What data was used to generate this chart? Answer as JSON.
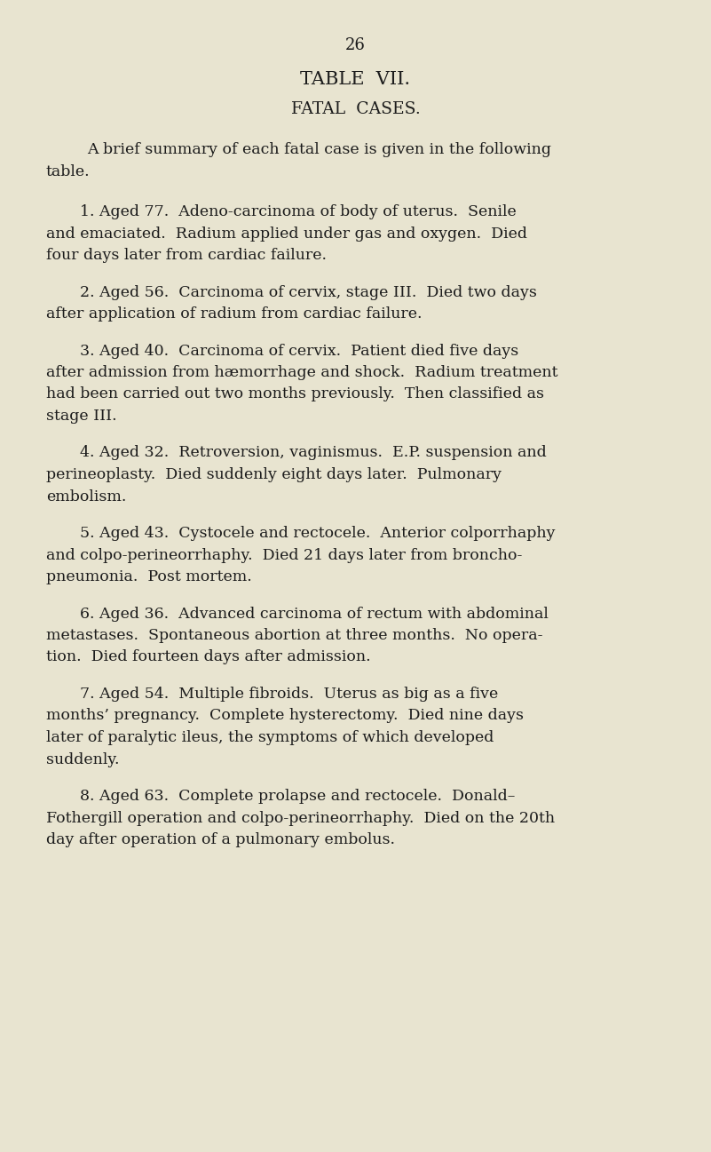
{
  "page_number": "26",
  "title1": "TABLE  VII.",
  "title2": "FATAL  CASES.",
  "intro_line1": "A brief summary of each fatal case is given in the following",
  "intro_line2": "table.",
  "background_color": "#e8e4d0",
  "text_color": "#1c1c1c",
  "cases": [
    {
      "lines": [
        "1. Aged 77.  Adeno-carcinoma of body of uterus.  Senile",
        "and emaciated.  Radium applied under gas and oxygen.  Died",
        "four days later from cardiac failure."
      ]
    },
    {
      "lines": [
        "2. Aged 56.  Carcinoma of cervix, stage III.  Died two days",
        "after application of radium from cardiac failure."
      ]
    },
    {
      "lines": [
        "3. Aged 40.  Carcinoma of cervix.  Patient died five days",
        "after admission from hæmorrhage and shock.  Radium treatment",
        "had been carried out two months previously.  Then classified as",
        "stage III."
      ]
    },
    {
      "lines": [
        "4. Aged 32.  Retroversion, vaginismus.  E.P. suspension and",
        "perineoplasty.  Died suddenly eight days later.  Pulmonary",
        "embolism."
      ]
    },
    {
      "lines": [
        "5. Aged 43.  Cystocele and rectocele.  Anterior colporrhaphy",
        "and colpo-perineorrhaphy.  Died 21 days later from broncho-",
        "pneumonia.  Post mortem."
      ]
    },
    {
      "lines": [
        "6. Aged 36.  Advanced carcinoma of rectum with abdominal",
        "metastases.  Spontaneous abortion at three months.  No opera-",
        "tion.  Died fourteen days after admission."
      ]
    },
    {
      "lines": [
        "7. Aged 54.  Multiple fibroids.  Uterus as big as a five",
        "months’ pregnancy.  Complete hysterectomy.  Died nine days",
        "later of paralytic ileus, the symptoms of which developed",
        "suddenly."
      ]
    },
    {
      "lines": [
        "8. Aged 63.  Complete prolapse and rectocele.  Donald–",
        "Fothergill operation and colpo-perineorrhaphy.  Died on the 20th",
        "day after operation of a pulmonary embolus."
      ]
    }
  ]
}
